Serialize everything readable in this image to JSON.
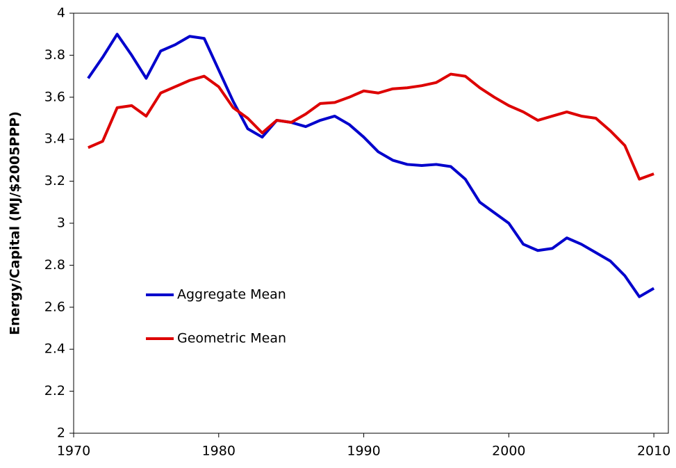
{
  "chart_data": {
    "type": "line",
    "y_label": "Energy/Capital (MJ/$2005PPP)",
    "x": [
      1971,
      1972,
      1973,
      1974,
      1975,
      1976,
      1977,
      1978,
      1979,
      1980,
      1981,
      1982,
      1983,
      1984,
      1985,
      1986,
      1987,
      1988,
      1989,
      1990,
      1991,
      1992,
      1993,
      1994,
      1995,
      1996,
      1997,
      1998,
      1999,
      2000,
      2001,
      2002,
      2003,
      2004,
      2005,
      2006,
      2007,
      2008,
      2009,
      2010
    ],
    "series": [
      {
        "name": "Aggregate Mean",
        "color": "#0000cc",
        "values": [
          3.69,
          3.79,
          3.9,
          3.8,
          3.69,
          3.82,
          3.85,
          3.89,
          3.88,
          3.73,
          3.58,
          3.45,
          3.41,
          3.49,
          3.48,
          3.46,
          3.49,
          3.51,
          3.47,
          3.41,
          3.34,
          3.3,
          3.28,
          3.275,
          3.28,
          3.27,
          3.21,
          3.1,
          3.05,
          3.0,
          2.9,
          2.87,
          2.88,
          2.93,
          2.9,
          2.86,
          2.82,
          2.75,
          2.65,
          2.69
        ]
      },
      {
        "name": "Geometric Mean",
        "color": "#dd0000",
        "values": [
          3.36,
          3.39,
          3.55,
          3.56,
          3.51,
          3.62,
          3.65,
          3.68,
          3.7,
          3.65,
          3.55,
          3.5,
          3.43,
          3.49,
          3.48,
          3.52,
          3.57,
          3.575,
          3.6,
          3.63,
          3.62,
          3.64,
          3.645,
          3.655,
          3.67,
          3.71,
          3.7,
          3.645,
          3.6,
          3.56,
          3.53,
          3.49,
          3.51,
          3.53,
          3.51,
          3.5,
          3.44,
          3.37,
          3.21,
          3.235
        ]
      }
    ],
    "xlim": [
      1970,
      2011
    ],
    "xticks": [
      1970,
      1980,
      1990,
      2000,
      2010
    ],
    "ylim": [
      2,
      4
    ],
    "yticks": [
      2,
      2.2,
      2.4,
      2.6,
      2.8,
      3,
      3.2,
      3.4,
      3.6,
      3.8,
      4
    ],
    "grid": false
  }
}
